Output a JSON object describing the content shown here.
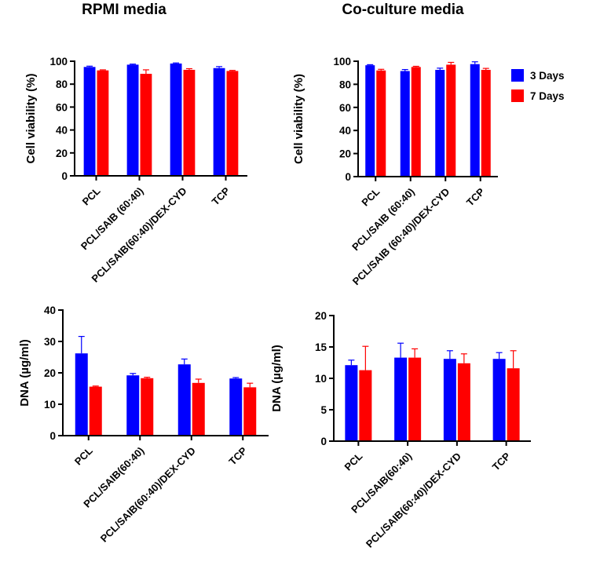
{
  "column_titles": [
    "RPMI media",
    "Co-culture media"
  ],
  "legend": [
    {
      "label": "3 Days",
      "color": "#0000ff"
    },
    {
      "label": "7 Days",
      "color": "#ff0000"
    }
  ],
  "chart_data": [
    {
      "type": "bar",
      "title": "RPMI media",
      "ylabel": "Cell viability (%)",
      "ylim": [
        0,
        100
      ],
      "yticks": [
        0,
        20,
        40,
        60,
        80,
        100
      ],
      "categories": [
        "PCL",
        "PCL/SAIB (60:40)",
        "PCL/SAIB(60:40)/DEX-CYD",
        "TCP"
      ],
      "series": [
        {
          "name": "3 Days",
          "color": "#0000ff",
          "values": [
            95,
            97,
            98,
            94
          ],
          "errors": [
            0.7,
            0.5,
            0.5,
            1.3
          ]
        },
        {
          "name": "7 Days",
          "color": "#ff0000",
          "values": [
            92,
            89,
            92.5,
            91.5
          ],
          "errors": [
            0.5,
            3.5,
            1.0,
            0.5
          ]
        }
      ]
    },
    {
      "type": "bar",
      "title": "Co-culture media",
      "ylabel": "Cell viability (%)",
      "ylim": [
        0,
        100
      ],
      "yticks": [
        0,
        20,
        40,
        60,
        80,
        100
      ],
      "categories": [
        "PCL",
        "PCL/SAIB (60:40)",
        "PCL/SAIB (60:40)/DEX-CYD",
        "TCP"
      ],
      "legend_position": "top-right",
      "series": [
        {
          "name": "3 Days",
          "color": "#0000ff",
          "values": [
            96.5,
            91.5,
            92.5,
            97.5
          ],
          "errors": [
            0.5,
            1.3,
            1.5,
            2.0
          ]
        },
        {
          "name": "7 Days",
          "color": "#ff0000",
          "values": [
            92,
            95,
            97,
            92.5
          ],
          "errors": [
            1.0,
            0.6,
            2.0,
            1.3
          ]
        }
      ]
    },
    {
      "type": "bar",
      "title": "",
      "ylabel": "DNA (µg/ml)",
      "ylim": [
        0,
        40
      ],
      "yticks": [
        0,
        10,
        20,
        30,
        40
      ],
      "categories": [
        "PCL",
        "PCL/SAIB(60:40)",
        "PCL/SAIB(60:40)/DEX-CYD",
        "TCP"
      ],
      "series": [
        {
          "name": "3 Days",
          "color": "#0000ff",
          "values": [
            26.2,
            19.2,
            22.7,
            18.2
          ],
          "errors": [
            5.4,
            0.6,
            1.7,
            0.3
          ]
        },
        {
          "name": "7 Days",
          "color": "#ff0000",
          "values": [
            15.6,
            18.3,
            16.8,
            15.4
          ],
          "errors": [
            0.2,
            0.3,
            1.2,
            1.3
          ]
        }
      ]
    },
    {
      "type": "bar",
      "title": "",
      "ylabel": "DNA (µg/ml)",
      "ylim": [
        0,
        20
      ],
      "yticks": [
        0,
        5,
        10,
        15,
        20
      ],
      "categories": [
        "PCL",
        "PCL/SAIB(60:40)",
        "PCL/SAIB(60:40)/DEX-CYD",
        "TCP"
      ],
      "series": [
        {
          "name": "3 Days",
          "color": "#0000ff",
          "values": [
            12.1,
            13.3,
            13.1,
            13.1
          ],
          "errors": [
            0.8,
            2.3,
            1.3,
            1.0
          ]
        },
        {
          "name": "7 Days",
          "color": "#ff0000",
          "values": [
            11.3,
            13.3,
            12.4,
            11.6
          ],
          "errors": [
            3.8,
            1.4,
            1.5,
            2.8
          ]
        }
      ]
    }
  ]
}
